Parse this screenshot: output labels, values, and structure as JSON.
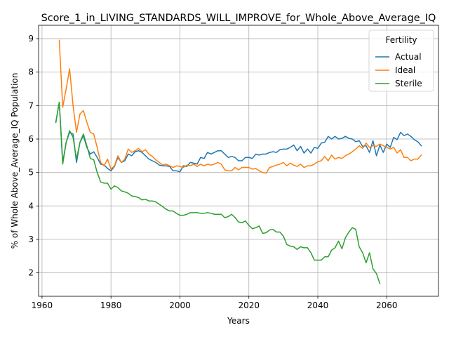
{
  "chart_data": {
    "type": "line",
    "title": "Score_1_in_LIVING_STANDARDS_WILL_IMPROVE_for_Whole_Above_Average_IQ",
    "xlabel": "Years",
    "ylabel": "% of Whole Above_Average_IQ Population",
    "xlim": [
      1959,
      2075
    ],
    "ylim": [
      1.3,
      9.4
    ],
    "xticks": [
      1960,
      1980,
      2000,
      2020,
      2040,
      2060
    ],
    "yticks": [
      2,
      3,
      4,
      5,
      6,
      7,
      8,
      9
    ],
    "grid": true,
    "legend": {
      "title": "Fertility",
      "position": "top-right"
    },
    "series": [
      {
        "name": "Actual",
        "color": "#1f77b4",
        "x": [
          1964,
          1965,
          1966,
          1967,
          1968,
          1969,
          1970,
          1971,
          1972,
          1973,
          1974,
          1975,
          1976,
          1977,
          1978,
          1979,
          1980,
          1981,
          1982,
          1983,
          1984,
          1985,
          1986,
          1987,
          1988,
          1989,
          1990,
          1991,
          1992,
          1993,
          1994,
          1995,
          1996,
          1997,
          1998,
          1999,
          2000,
          2001,
          2002,
          2003,
          2004,
          2005,
          2006,
          2007,
          2008,
          2009,
          2010,
          2011,
          2012,
          2013,
          2014,
          2015,
          2016,
          2017,
          2018,
          2019,
          2020,
          2021,
          2022,
          2023,
          2024,
          2025,
          2026,
          2027,
          2028,
          2029,
          2030,
          2031,
          2032,
          2033,
          2034,
          2035,
          2036,
          2037,
          2038,
          2039,
          2040,
          2041,
          2042,
          2043,
          2044,
          2045,
          2046,
          2047,
          2048,
          2049,
          2050,
          2051,
          2052,
          2053,
          2054,
          2055,
          2056,
          2057,
          2058,
          2059,
          2060,
          2061,
          2062,
          2063,
          2064,
          2065,
          2066,
          2067,
          2068,
          2069,
          2070
        ],
        "values": [
          6.5,
          7.1,
          5.3,
          5.9,
          6.2,
          6.15,
          5.3,
          5.9,
          6.1,
          5.75,
          5.55,
          5.62,
          5.45,
          5.25,
          5.22,
          5.12,
          5.05,
          5.18,
          5.45,
          5.3,
          5.35,
          5.55,
          5.5,
          5.62,
          5.65,
          5.6,
          5.5,
          5.4,
          5.35,
          5.3,
          5.22,
          5.2,
          5.2,
          5.18,
          5.05,
          5.05,
          5.02,
          5.2,
          5.18,
          5.3,
          5.28,
          5.25,
          5.45,
          5.42,
          5.6,
          5.55,
          5.6,
          5.65,
          5.65,
          5.55,
          5.45,
          5.48,
          5.45,
          5.35,
          5.35,
          5.45,
          5.45,
          5.42,
          5.55,
          5.52,
          5.55,
          5.55,
          5.6,
          5.62,
          5.6,
          5.68,
          5.7,
          5.7,
          5.75,
          5.82,
          5.65,
          5.78,
          5.58,
          5.7,
          5.58,
          5.75,
          5.72,
          5.88,
          5.9,
          6.08,
          6.0,
          6.08,
          6.0,
          6.02,
          6.08,
          6.02,
          6.0,
          5.92,
          5.95,
          5.78,
          5.8,
          5.6,
          5.95,
          5.5,
          5.82,
          5.6,
          5.85,
          5.75,
          6.05,
          5.98,
          6.2,
          6.1,
          6.15,
          6.08,
          5.98,
          5.92,
          5.8
        ]
      },
      {
        "name": "Ideal",
        "color": "#ff7f0e",
        "x": [
          1965,
          1966,
          1967,
          1968,
          1969,
          1970,
          1971,
          1972,
          1973,
          1974,
          1975,
          1976,
          1977,
          1978,
          1979,
          1980,
          1981,
          1982,
          1983,
          1984,
          1985,
          1986,
          1987,
          1988,
          1989,
          1990,
          1991,
          1992,
          1993,
          1994,
          1995,
          1996,
          1997,
          1998,
          1999,
          2000,
          2001,
          2002,
          2003,
          2004,
          2005,
          2006,
          2007,
          2008,
          2009,
          2010,
          2011,
          2012,
          2013,
          2014,
          2015,
          2016,
          2017,
          2018,
          2019,
          2020,
          2021,
          2022,
          2023,
          2024,
          2025,
          2026,
          2027,
          2028,
          2029,
          2030,
          2031,
          2032,
          2033,
          2034,
          2035,
          2036,
          2037,
          2038,
          2039,
          2040,
          2041,
          2042,
          2043,
          2044,
          2045,
          2046,
          2047,
          2048,
          2049,
          2050,
          2051,
          2052,
          2053,
          2054,
          2055,
          2056,
          2057,
          2058,
          2059,
          2060,
          2061,
          2062,
          2063,
          2064,
          2065,
          2066,
          2067,
          2068,
          2069,
          2070
        ],
        "values": [
          8.95,
          6.95,
          7.5,
          8.1,
          7.0,
          6.2,
          6.75,
          6.85,
          6.5,
          6.2,
          6.15,
          5.75,
          5.3,
          5.2,
          5.4,
          5.1,
          5.2,
          5.5,
          5.3,
          5.4,
          5.7,
          5.6,
          5.65,
          5.72,
          5.62,
          5.68,
          5.55,
          5.48,
          5.38,
          5.3,
          5.22,
          5.25,
          5.2,
          5.15,
          5.2,
          5.18,
          5.15,
          5.22,
          5.2,
          5.25,
          5.18,
          5.25,
          5.2,
          5.25,
          5.22,
          5.25,
          5.3,
          5.25,
          5.08,
          5.05,
          5.05,
          5.15,
          5.08,
          5.15,
          5.15,
          5.15,
          5.1,
          5.12,
          5.05,
          5.0,
          4.98,
          5.15,
          5.18,
          5.22,
          5.25,
          5.3,
          5.2,
          5.28,
          5.22,
          5.18,
          5.25,
          5.15,
          5.2,
          5.2,
          5.25,
          5.32,
          5.35,
          5.48,
          5.35,
          5.52,
          5.4,
          5.45,
          5.42,
          5.5,
          5.55,
          5.62,
          5.7,
          5.8,
          5.72,
          5.88,
          5.75,
          5.8,
          5.78,
          5.85,
          5.8,
          5.75,
          5.7,
          5.75,
          5.58,
          5.68,
          5.45,
          5.45,
          5.35,
          5.4,
          5.4,
          5.52
        ]
      },
      {
        "name": "Sterile",
        "color": "#2ca02c",
        "x": [
          1964,
          1965,
          1966,
          1967,
          1968,
          1969,
          1970,
          1971,
          1972,
          1973,
          1974,
          1975,
          1976,
          1977,
          1978,
          1979,
          1980,
          1981,
          1982,
          1983,
          1984,
          1985,
          1986,
          1987,
          1988,
          1989,
          1990,
          1991,
          1992,
          1993,
          1994,
          1995,
          1996,
          1997,
          1998,
          1999,
          2000,
          2001,
          2002,
          2003,
          2004,
          2005,
          2006,
          2007,
          2008,
          2009,
          2010,
          2011,
          2012,
          2013,
          2014,
          2015,
          2016,
          2017,
          2018,
          2019,
          2020,
          2021,
          2022,
          2023,
          2024,
          2025,
          2026,
          2027,
          2028,
          2029,
          2030,
          2031,
          2032,
          2033,
          2034,
          2035,
          2036,
          2037,
          2038,
          2039,
          2040,
          2041,
          2042,
          2043,
          2044,
          2045,
          2046,
          2047,
          2048,
          2049,
          2050,
          2051,
          2052,
          2053,
          2054,
          2055,
          2056,
          2057,
          2058
        ],
        "values": [
          6.5,
          7.1,
          5.25,
          5.9,
          6.25,
          6.05,
          5.4,
          5.9,
          6.15,
          5.8,
          5.42,
          5.38,
          5.0,
          4.72,
          4.68,
          4.68,
          4.5,
          4.6,
          4.55,
          4.45,
          4.42,
          4.38,
          4.3,
          4.28,
          4.25,
          4.18,
          4.2,
          4.15,
          4.15,
          4.12,
          4.05,
          3.98,
          3.9,
          3.85,
          3.85,
          3.78,
          3.72,
          3.72,
          3.75,
          3.8,
          3.8,
          3.8,
          3.78,
          3.78,
          3.8,
          3.78,
          3.75,
          3.75,
          3.75,
          3.65,
          3.68,
          3.75,
          3.65,
          3.52,
          3.5,
          3.55,
          3.42,
          3.32,
          3.35,
          3.4,
          3.18,
          3.2,
          3.28,
          3.3,
          3.22,
          3.22,
          3.1,
          2.85,
          2.8,
          2.78,
          2.7,
          2.78,
          2.75,
          2.75,
          2.6,
          2.38,
          2.38,
          2.38,
          2.48,
          2.48,
          2.68,
          2.75,
          2.95,
          2.72,
          3.05,
          3.22,
          3.35,
          3.3,
          2.78,
          2.6,
          2.3,
          2.6,
          2.12,
          1.98,
          1.68
        ]
      }
    ]
  }
}
